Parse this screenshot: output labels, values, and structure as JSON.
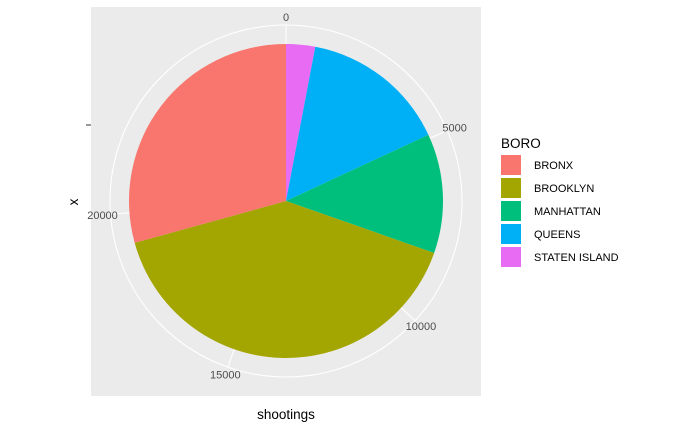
{
  "chart_data": {
    "type": "pie",
    "xlabel": "shootings",
    "ylabel": "x",
    "legend": {
      "title": "BORO",
      "position": "right"
    },
    "slices": [
      {
        "label": "BRONX",
        "value": 7940,
        "color": "#F8766D"
      },
      {
        "label": "BROOKLYN",
        "value": 10930,
        "color": "#A3A500"
      },
      {
        "label": "MANHATTAN",
        "value": 3330,
        "color": "#00BF7D"
      },
      {
        "label": "QUEENS",
        "value": 4090,
        "color": "#00B0F6"
      },
      {
        "label": "STATEN ISLAND",
        "value": 810,
        "color": "#E76BF3"
      }
    ],
    "angle_ticks": [
      {
        "label": "0",
        "value": 0
      },
      {
        "label": "5000",
        "value": 5000
      },
      {
        "label": "10000",
        "value": 10000
      },
      {
        "label": "15000",
        "value": 15000
      },
      {
        "label": "20000",
        "value": 20000
      }
    ],
    "panel_background": "#EBEBEB",
    "grid_color": "#FFFFFF",
    "grid": true
  }
}
